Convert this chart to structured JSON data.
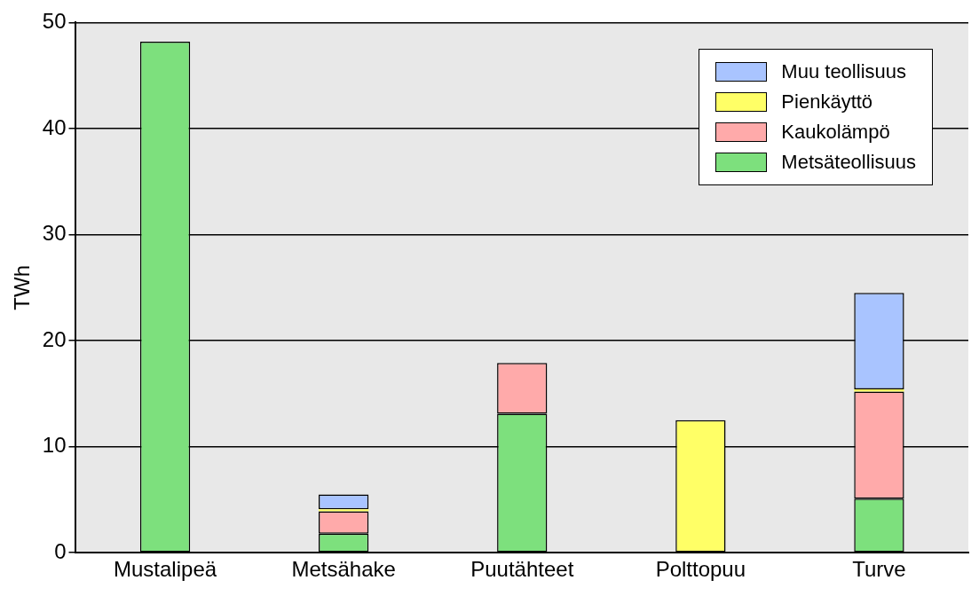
{
  "chart_data": {
    "type": "bar",
    "ylabel": "TWh",
    "categories": [
      "Mustalipeä",
      "Metsähake",
      "Puutähteet",
      "Polttopuu",
      "Turve"
    ],
    "stacked": true,
    "ylim": [
      0,
      50
    ],
    "yticks": [
      0,
      10,
      20,
      30,
      40,
      50
    ],
    "grid": "y",
    "legend": "top right",
    "series": [
      {
        "name": "Metsäteollisuus",
        "color": "#7de07d",
        "values": [
          48.2,
          1.8,
          13.1,
          null,
          5.1
        ]
      },
      {
        "name": "Kaukolämpö",
        "color": "#ffaaaa",
        "values": [
          null,
          2.1,
          4.8,
          null,
          10.1
        ]
      },
      {
        "name": "Pienkäyttö",
        "color": "#ffff66",
        "values": [
          null,
          0.2,
          null,
          12.5,
          0.2
        ]
      },
      {
        "name": "Muu teollisuus",
        "color": "#a9c4ff",
        "values": [
          null,
          1.4,
          null,
          null,
          9.1
        ]
      }
    ]
  }
}
